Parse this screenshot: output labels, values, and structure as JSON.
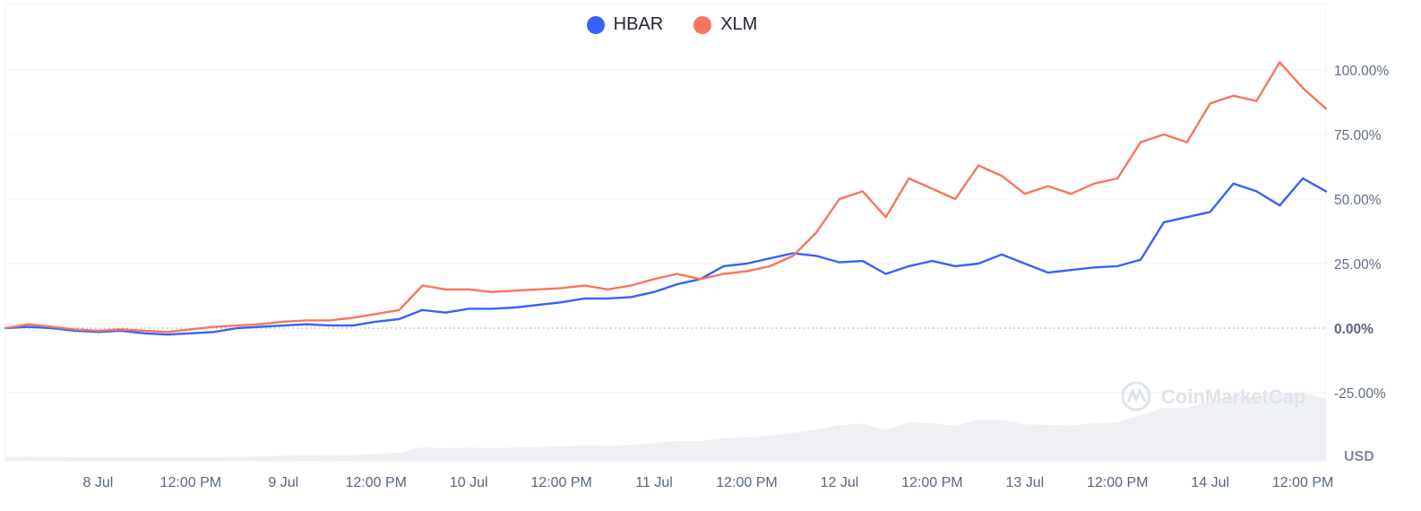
{
  "chart_data": {
    "type": "line",
    "title": "",
    "xlabel": "",
    "ylabel": "",
    "unit": "USD",
    "ylim": [
      -50,
      120
    ],
    "y_ticks": [
      {
        "value": 100,
        "label": "100.00%"
      },
      {
        "value": 75,
        "label": "75.00%"
      },
      {
        "value": 50,
        "label": "50.00%"
      },
      {
        "value": 25,
        "label": "25.00%"
      },
      {
        "value": 0,
        "label": "0.00%"
      },
      {
        "value": -25,
        "label": "-25.00%"
      }
    ],
    "x_range": [
      "2024-07-07T12:00",
      "2024-07-14T15:00"
    ],
    "x_ticks": [
      {
        "t": "2024-07-08T00:00",
        "label": "8 Jul"
      },
      {
        "t": "2024-07-08T12:00",
        "label": "12:00 PM"
      },
      {
        "t": "2024-07-09T00:00",
        "label": "9 Jul"
      },
      {
        "t": "2024-07-09T12:00",
        "label": "12:00 PM"
      },
      {
        "t": "2024-07-10T00:00",
        "label": "10 Jul"
      },
      {
        "t": "2024-07-10T12:00",
        "label": "12:00 PM"
      },
      {
        "t": "2024-07-11T00:00",
        "label": "11 Jul"
      },
      {
        "t": "2024-07-11T12:00",
        "label": "12:00 PM"
      },
      {
        "t": "2024-07-12T00:00",
        "label": "12 Jul"
      },
      {
        "t": "2024-07-12T12:00",
        "label": "12:00 PM"
      },
      {
        "t": "2024-07-13T00:00",
        "label": "13 Jul"
      },
      {
        "t": "2024-07-13T12:00",
        "label": "12:00 PM"
      },
      {
        "t": "2024-07-14T00:00",
        "label": "14 Jul"
      },
      {
        "t": "2024-07-14T12:00",
        "label": "12:00 PM"
      }
    ],
    "legend_position": "top-center",
    "grid": true,
    "series": [
      {
        "name": "HBAR",
        "color": "#3861fb",
        "points": [
          [
            "2024-07-07T12:00",
            0
          ],
          [
            "2024-07-07T15:00",
            0.5
          ],
          [
            "2024-07-07T18:00",
            0
          ],
          [
            "2024-07-07T21:00",
            -1
          ],
          [
            "2024-07-08T00:00",
            -1.5
          ],
          [
            "2024-07-08T03:00",
            -1
          ],
          [
            "2024-07-08T06:00",
            -2
          ],
          [
            "2024-07-08T09:00",
            -2.5
          ],
          [
            "2024-07-08T12:00",
            -2
          ],
          [
            "2024-07-08T15:00",
            -1.5
          ],
          [
            "2024-07-08T18:00",
            0
          ],
          [
            "2024-07-08T21:00",
            0.5
          ],
          [
            "2024-07-09T00:00",
            1
          ],
          [
            "2024-07-09T03:00",
            1.5
          ],
          [
            "2024-07-09T06:00",
            1
          ],
          [
            "2024-07-09T09:00",
            1
          ],
          [
            "2024-07-09T12:00",
            2.5
          ],
          [
            "2024-07-09T15:00",
            3.5
          ],
          [
            "2024-07-09T18:00",
            7
          ],
          [
            "2024-07-09T21:00",
            6
          ],
          [
            "2024-07-10T00:00",
            7.5
          ],
          [
            "2024-07-10T03:00",
            7.5
          ],
          [
            "2024-07-10T06:00",
            8
          ],
          [
            "2024-07-10T09:00",
            9
          ],
          [
            "2024-07-10T12:00",
            10
          ],
          [
            "2024-07-10T15:00",
            11.5
          ],
          [
            "2024-07-10T18:00",
            11.5
          ],
          [
            "2024-07-10T21:00",
            12
          ],
          [
            "2024-07-11T00:00",
            14
          ],
          [
            "2024-07-11T03:00",
            17
          ],
          [
            "2024-07-11T06:00",
            19
          ],
          [
            "2024-07-11T09:00",
            24
          ],
          [
            "2024-07-11T12:00",
            25
          ],
          [
            "2024-07-11T15:00",
            27
          ],
          [
            "2024-07-11T18:00",
            29
          ],
          [
            "2024-07-11T21:00",
            28
          ],
          [
            "2024-07-12T00:00",
            25.5
          ],
          [
            "2024-07-12T03:00",
            26
          ],
          [
            "2024-07-12T06:00",
            21
          ],
          [
            "2024-07-12T09:00",
            24
          ],
          [
            "2024-07-12T12:00",
            26
          ],
          [
            "2024-07-12T15:00",
            24
          ],
          [
            "2024-07-12T18:00",
            25
          ],
          [
            "2024-07-12T21:00",
            28.5
          ],
          [
            "2024-07-13T00:00",
            25
          ],
          [
            "2024-07-13T03:00",
            21.5
          ],
          [
            "2024-07-13T06:00",
            22.5
          ],
          [
            "2024-07-13T09:00",
            23.5
          ],
          [
            "2024-07-13T12:00",
            24
          ],
          [
            "2024-07-13T15:00",
            26.5
          ],
          [
            "2024-07-13T18:00",
            41
          ],
          [
            "2024-07-13T21:00",
            43
          ],
          [
            "2024-07-14T00:00",
            45
          ],
          [
            "2024-07-14T03:00",
            56
          ],
          [
            "2024-07-14T06:00",
            53
          ],
          [
            "2024-07-14T09:00",
            47.5
          ],
          [
            "2024-07-14T12:00",
            58
          ],
          [
            "2024-07-14T15:00",
            53
          ]
        ]
      },
      {
        "name": "XLM",
        "color": "#f7765b",
        "points": [
          [
            "2024-07-07T12:00",
            0
          ],
          [
            "2024-07-07T15:00",
            1.5
          ],
          [
            "2024-07-07T18:00",
            0.5
          ],
          [
            "2024-07-07T21:00",
            -0.5
          ],
          [
            "2024-07-08T00:00",
            -1
          ],
          [
            "2024-07-08T03:00",
            -0.5
          ],
          [
            "2024-07-08T06:00",
            -1
          ],
          [
            "2024-07-08T09:00",
            -1.5
          ],
          [
            "2024-07-08T12:00",
            -0.5
          ],
          [
            "2024-07-08T15:00",
            0.5
          ],
          [
            "2024-07-08T18:00",
            1
          ],
          [
            "2024-07-08T21:00",
            1.5
          ],
          [
            "2024-07-09T00:00",
            2.5
          ],
          [
            "2024-07-09T03:00",
            3
          ],
          [
            "2024-07-09T06:00",
            3
          ],
          [
            "2024-07-09T09:00",
            4
          ],
          [
            "2024-07-09T12:00",
            5.5
          ],
          [
            "2024-07-09T15:00",
            7
          ],
          [
            "2024-07-09T18:00",
            16.5
          ],
          [
            "2024-07-09T21:00",
            15
          ],
          [
            "2024-07-10T00:00",
            15
          ],
          [
            "2024-07-10T03:00",
            14
          ],
          [
            "2024-07-10T06:00",
            14.5
          ],
          [
            "2024-07-10T09:00",
            15
          ],
          [
            "2024-07-10T12:00",
            15.5
          ],
          [
            "2024-07-10T15:00",
            16.5
          ],
          [
            "2024-07-10T18:00",
            15
          ],
          [
            "2024-07-10T21:00",
            16.5
          ],
          [
            "2024-07-11T00:00",
            19
          ],
          [
            "2024-07-11T03:00",
            21
          ],
          [
            "2024-07-11T06:00",
            19
          ],
          [
            "2024-07-11T09:00",
            21
          ],
          [
            "2024-07-11T12:00",
            22
          ],
          [
            "2024-07-11T15:00",
            24
          ],
          [
            "2024-07-11T18:00",
            28
          ],
          [
            "2024-07-11T21:00",
            37
          ],
          [
            "2024-07-12T00:00",
            50
          ],
          [
            "2024-07-12T03:00",
            53
          ],
          [
            "2024-07-12T06:00",
            43
          ],
          [
            "2024-07-12T09:00",
            58
          ],
          [
            "2024-07-12T12:00",
            54
          ],
          [
            "2024-07-12T15:00",
            50
          ],
          [
            "2024-07-12T18:00",
            63
          ],
          [
            "2024-07-12T21:00",
            59
          ],
          [
            "2024-07-13T00:00",
            52
          ],
          [
            "2024-07-13T03:00",
            55
          ],
          [
            "2024-07-13T06:00",
            52
          ],
          [
            "2024-07-13T09:00",
            56
          ],
          [
            "2024-07-13T12:00",
            58
          ],
          [
            "2024-07-13T15:00",
            72
          ],
          [
            "2024-07-13T18:00",
            75
          ],
          [
            "2024-07-13T21:00",
            72
          ],
          [
            "2024-07-14T00:00",
            87
          ],
          [
            "2024-07-14T03:00",
            90
          ],
          [
            "2024-07-14T06:00",
            88
          ],
          [
            "2024-07-14T09:00",
            103
          ],
          [
            "2024-07-14T12:00",
            93
          ],
          [
            "2024-07-14T15:00",
            85
          ]
        ]
      }
    ]
  },
  "watermark": {
    "brand": "CoinMarketCap"
  },
  "colors": {
    "grid": "#eff2f5",
    "axis_text": "#58667e",
    "volume": "#eef0f3",
    "watermark": "#dfe3ea"
  }
}
